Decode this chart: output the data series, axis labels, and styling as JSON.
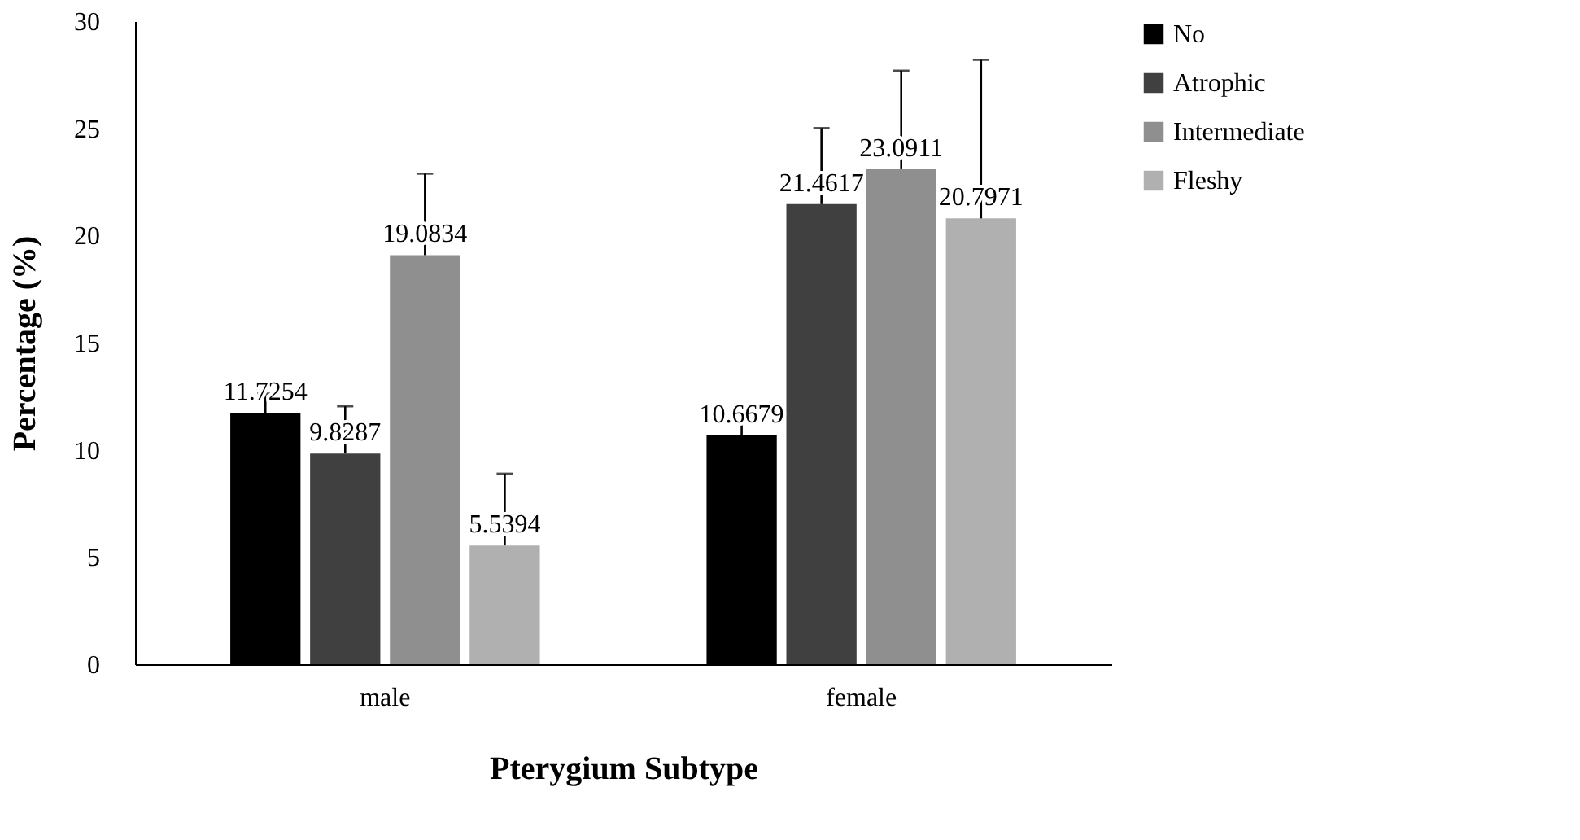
{
  "chart_data": {
    "type": "bar",
    "xlabel": "Pterygium Subtype",
    "ylabel": "Percentage (%)",
    "categories": [
      "male",
      "female"
    ],
    "series": [
      {
        "name": "No",
        "color": "#000000",
        "values": [
          11.7254,
          10.6679
        ],
        "errors": [
          0.9,
          0.9
        ]
      },
      {
        "name": "Atrophic",
        "color": "#404040",
        "values": [
          9.8287,
          21.4617
        ],
        "errors": [
          2.2,
          3.55
        ]
      },
      {
        "name": "Intermediate",
        "color": "#8f8f8f",
        "values": [
          19.0834,
          23.0911
        ],
        "errors": [
          3.8,
          4.6
        ]
      },
      {
        "name": "Fleshy",
        "color": "#b0b0b0",
        "values": [
          5.5394,
          20.7971
        ],
        "errors": [
          3.35,
          7.4
        ]
      }
    ],
    "ylim": [
      0,
      30
    ],
    "yticks": [
      0,
      5,
      10,
      15,
      20,
      25,
      30
    ],
    "grid": false,
    "legend": "right",
    "data_labels": true
  }
}
